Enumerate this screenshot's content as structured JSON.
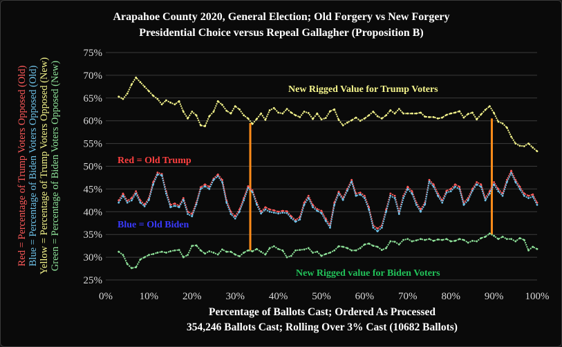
{
  "chart_data": {
    "type": "line",
    "title": "Arapahoe County 2020, General Election; Old Forgery vs New Forgery",
    "subtitle": "Presidential Choice versus Repeal Gallagher (Proposition B)",
    "xlabel": "Percentage of  Ballots Cast; Ordered As Processed",
    "xlabel2": "354,246 Ballots Cast; Rolling Over 3% Cast (10682 Ballots)",
    "ylabel_lines": [
      {
        "text": "Red = Percentage of Trump Voters Opposed (Old)",
        "color": "#ff5a5a"
      },
      {
        "text": "Blue = Percentage of Biden Voters Opposed (Old)",
        "color": "#6fc3ea"
      },
      {
        "text": "Yellow = Percentage of Trump Voters Opposed (New)",
        "color": "#f5f58c"
      },
      {
        "text": "Green = Percentage of Biden Voters Opposed (New)",
        "color": "#8fe39a"
      }
    ],
    "xlim": [
      0,
      100
    ],
    "ylim": [
      25,
      75
    ],
    "x_ticks": [
      "0%",
      "10%",
      "20%",
      "30%",
      "40%",
      "50%",
      "60%",
      "70%",
      "80%",
      "90%",
      "100%"
    ],
    "y_ticks": [
      "25%",
      "30%",
      "35%",
      "40%",
      "45%",
      "50%",
      "55%",
      "60%",
      "65%",
      "70%",
      "75%"
    ],
    "grid": true,
    "annotations": [
      {
        "text": "New Rigged Value for Trump Voters",
        "color": "#f5f58c"
      },
      {
        "text": "Red = Old Trump",
        "color": "#ff4040"
      },
      {
        "text": "Blue = Old Biden",
        "color": "#3a3aff"
      },
      {
        "text": "New Rigged value for Biden Voters",
        "color": "#22c35a"
      }
    ],
    "vlines": [
      {
        "x": 33.5,
        "y_from": 31.5,
        "y_to": 59.5,
        "color": "#ff8c1a"
      },
      {
        "x": 89.5,
        "y_from": 35.0,
        "y_to": 60.5,
        "color": "#ff8c1a"
      }
    ],
    "series": [
      {
        "color": "#f5f58c",
        "x": [
          3,
          4,
          5,
          6,
          7,
          8,
          9,
          10,
          11,
          12,
          13,
          14,
          15,
          16,
          17,
          18,
          19,
          20,
          21,
          22,
          23,
          24,
          25,
          26,
          27,
          28,
          29,
          30,
          31,
          32,
          33,
          34,
          35,
          36,
          37,
          38,
          39,
          40,
          41,
          42,
          43,
          44,
          45,
          46,
          47,
          48,
          49,
          50,
          51,
          52,
          53,
          54,
          55,
          56,
          57,
          58,
          59,
          60,
          61,
          62,
          63,
          64,
          65,
          66,
          67,
          68,
          69,
          70,
          71,
          72,
          73,
          74,
          75,
          76,
          77,
          78,
          79,
          80,
          81,
          82,
          83,
          84,
          85,
          86,
          87,
          88,
          89,
          90,
          91,
          92,
          93,
          94,
          95,
          96,
          97,
          98,
          99,
          100
        ],
        "y": [
          65.3,
          64.8,
          66,
          68,
          69.5,
          68.5,
          67.5,
          66.5,
          65.5,
          64.8,
          63.6,
          64.5,
          64,
          63.6,
          64.3,
          62,
          60.5,
          62,
          61.2,
          59,
          58.8,
          61,
          62,
          64.3,
          63.5,
          62.2,
          61.6,
          63.2,
          62.5,
          61.2,
          60.5,
          59.3,
          60.4,
          61.6,
          60.2,
          62.3,
          62.8,
          61.8,
          61.6,
          62.6,
          61.8,
          61.2,
          60.8,
          62,
          61.7,
          60.4,
          61.6,
          60.3,
          60.6,
          62.1,
          62.5,
          60.2,
          59,
          59.6,
          60.1,
          60.7,
          60,
          60.5,
          61.2,
          62,
          61,
          60.5,
          61.2,
          62.3,
          61.6,
          62.6,
          61.6,
          61.6,
          61.6,
          61.6,
          61.8,
          60.9,
          60.8,
          60.8,
          60.5,
          60.7,
          61.3,
          61.6,
          61.8,
          62.1,
          60.7,
          61.5,
          61.8,
          60.3,
          61.4,
          62.4,
          63.2,
          61.7,
          59.8,
          59.4,
          58.5,
          56.5,
          55,
          54.5,
          54.4,
          55,
          54.1,
          53.3
        ]
      },
      {
        "color": "#ff5a5a",
        "x": [
          3,
          4,
          5,
          6,
          7,
          8,
          9,
          10,
          11,
          12,
          13,
          14,
          15,
          16,
          17,
          18,
          19,
          20,
          21,
          22,
          23,
          24,
          25,
          26,
          27,
          28,
          29,
          30,
          31,
          32,
          33,
          34,
          35,
          36,
          37,
          38,
          39,
          40,
          41,
          42,
          43,
          44,
          45,
          46,
          47,
          48,
          49,
          50,
          51,
          52,
          53,
          54,
          55,
          56,
          57,
          58,
          59,
          60,
          61,
          62,
          63,
          64,
          65,
          66,
          67,
          68,
          69,
          70,
          71,
          72,
          73,
          74,
          75,
          76,
          77,
          78,
          79,
          80,
          81,
          82,
          83,
          84,
          85,
          86,
          87,
          88,
          89,
          90,
          91,
          92,
          93,
          94,
          95,
          96,
          97,
          98,
          99,
          100
        ],
        "y": [
          42.5,
          44,
          42.4,
          43,
          44.5,
          42.5,
          41.6,
          43,
          46.5,
          48.6,
          48.3,
          44.5,
          41.5,
          41.8,
          41.3,
          43,
          40,
          39.5,
          42,
          45.4,
          46,
          45.5,
          47.3,
          48.2,
          47,
          42.5,
          40,
          39,
          40.5,
          43,
          45.6,
          44.7,
          42,
          40,
          41,
          40.5,
          40.3,
          40,
          40.2,
          40.1,
          39,
          38.2,
          38.8,
          42,
          43.5,
          41.5,
          40.6,
          40.2,
          38.5,
          37,
          42,
          44.4,
          43,
          45,
          47,
          44,
          44.2,
          43.5,
          41,
          37,
          36.3,
          37,
          40.5,
          44,
          43.5,
          40,
          43.5,
          45.5,
          44.5,
          42,
          40.5,
          42,
          47,
          46,
          44,
          42.5,
          44.6,
          45,
          46,
          45.5,
          42,
          43,
          45,
          46.5,
          46,
          43,
          44.5,
          46.5,
          45,
          44,
          47,
          49,
          47,
          45.5,
          44,
          43.5,
          43.8,
          42
        ]
      },
      {
        "color": "#6fc3ea",
        "x": [
          3,
          4,
          5,
          6,
          7,
          8,
          9,
          10,
          11,
          12,
          13,
          14,
          15,
          16,
          17,
          18,
          19,
          20,
          21,
          22,
          23,
          24,
          25,
          26,
          27,
          28,
          29,
          30,
          31,
          32,
          33,
          34,
          35,
          36,
          37,
          38,
          39,
          40,
          41,
          42,
          43,
          44,
          45,
          46,
          47,
          48,
          49,
          50,
          51,
          52,
          53,
          54,
          55,
          56,
          57,
          58,
          59,
          60,
          61,
          62,
          63,
          64,
          65,
          66,
          67,
          68,
          69,
          70,
          71,
          72,
          73,
          74,
          75,
          76,
          77,
          78,
          79,
          80,
          81,
          82,
          83,
          84,
          85,
          86,
          87,
          88,
          89,
          90,
          91,
          92,
          93,
          94,
          95,
          96,
          97,
          98,
          99,
          100
        ],
        "y": [
          42,
          43.5,
          42,
          42.5,
          44,
          42,
          41.2,
          42.6,
          46,
          48.2,
          48,
          44,
          41,
          41.3,
          41,
          42.6,
          39.5,
          39,
          41.6,
          45,
          45.6,
          45,
          47,
          47.8,
          46.5,
          42,
          39.5,
          38.5,
          40,
          42.5,
          45.2,
          44.3,
          41.6,
          39.6,
          40.5,
          40,
          39.8,
          39.6,
          39.8,
          39.7,
          38.6,
          37.8,
          38.3,
          41.5,
          43,
          41,
          40.2,
          39.7,
          38,
          36.5,
          41.5,
          44,
          42.6,
          44.6,
          46.6,
          43.5,
          43.8,
          43,
          40.5,
          36.5,
          35.7,
          36.5,
          40,
          43.5,
          43,
          39.5,
          43,
          45,
          44,
          41.5,
          40,
          41.6,
          46.6,
          45.5,
          43.5,
          42,
          44.2,
          44.5,
          45.5,
          45,
          41.5,
          42.5,
          44.6,
          46,
          45.5,
          42.5,
          44,
          46,
          44.5,
          43.5,
          46.5,
          48.5,
          46.5,
          45,
          43.5,
          43,
          43.3,
          41.5
        ]
      },
      {
        "color": "#8fe39a",
        "x": [
          3,
          4,
          5,
          6,
          7,
          8,
          9,
          10,
          11,
          12,
          13,
          14,
          15,
          16,
          17,
          18,
          19,
          20,
          21,
          22,
          23,
          24,
          25,
          26,
          27,
          28,
          29,
          30,
          31,
          32,
          33,
          34,
          35,
          36,
          37,
          38,
          39,
          40,
          41,
          42,
          43,
          44,
          45,
          46,
          47,
          48,
          49,
          50,
          51,
          52,
          53,
          54,
          55,
          56,
          57,
          58,
          59,
          60,
          61,
          62,
          63,
          64,
          65,
          66,
          67,
          68,
          69,
          70,
          71,
          72,
          73,
          74,
          75,
          76,
          77,
          78,
          79,
          80,
          81,
          82,
          83,
          84,
          85,
          86,
          87,
          88,
          89,
          90,
          91,
          92,
          93,
          94,
          95,
          96,
          97,
          98,
          99,
          100
        ],
        "y": [
          31.2,
          30.5,
          28.5,
          27.6,
          27.8,
          29.5,
          30,
          30.5,
          30.7,
          31,
          31.2,
          31,
          31.3,
          31.5,
          31.6,
          30,
          30.5,
          32.5,
          32.6,
          31.5,
          30.8,
          31.3,
          31,
          30.6,
          31.7,
          31.2,
          31.2,
          30.6,
          30.2,
          31,
          31.5,
          31.3,
          31.8,
          31.2,
          30.6,
          32,
          32.4,
          31.8,
          31.5,
          30,
          30.3,
          31.5,
          31.6,
          31.7,
          32,
          31,
          31.2,
          30.3,
          30.7,
          31,
          31.5,
          32.4,
          32.3,
          32,
          31.5,
          31.5,
          32,
          32.8,
          33,
          32.5,
          32.3,
          31.6,
          32,
          33.5,
          33.4,
          32.8,
          33.8,
          34,
          33.5,
          33.7,
          34,
          33.8,
          34,
          33.6,
          33.9,
          33.8,
          34,
          33.5,
          33.6,
          34,
          33.8,
          33.2,
          33.6,
          33.5,
          34.2,
          34.5,
          35.2,
          34.7,
          34,
          34.5,
          34,
          34,
          33.5,
          34.2,
          33.8,
          31.5,
          32.3,
          31.8
        ]
      }
    ]
  }
}
